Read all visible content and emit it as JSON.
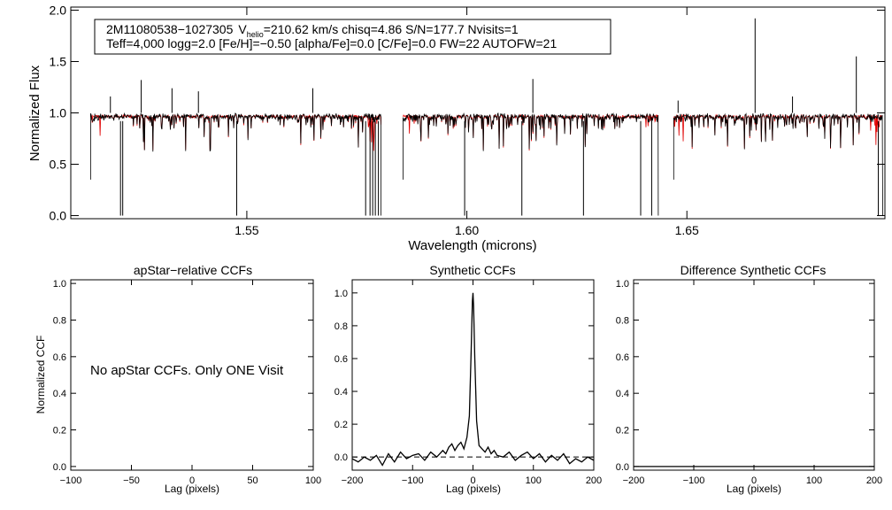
{
  "info_box": {
    "line1_star": "2M11080538−1027305",
    "line1_v": "V",
    "line1_v_sub": "helio",
    "line1_rest": "=210.62 km/s  chisq=4.86  S/N=177.7  Nvisits=1",
    "line2": "Teff=4,000 logg=2.0 [Fe/H]=−0.50 [alpha/Fe]=0.0 [C/Fe]=0.0 FW=22 AUTOFW=21"
  },
  "no_ccf_message": "No apStar CCFs.  Only ONE Visit",
  "colors": {
    "observed": "#000000",
    "model": "#e00000",
    "zero_line": "#000000"
  },
  "chart_data": [
    {
      "id": "spectrum",
      "type": "line",
      "title": "",
      "xlabel": "Wavelength (microns)",
      "ylabel": "Normalized Flux",
      "xlim": [
        1.51,
        1.695
      ],
      "ylim": [
        -0.03,
        2.03
      ],
      "xticks": [
        1.55,
        1.6,
        1.65
      ],
      "xtick_labels": [
        "1.55",
        "1.60",
        "1.65"
      ],
      "yticks": [
        0.0,
        0.5,
        1.0,
        1.5,
        2.0
      ],
      "ytick_labels": [
        "0.0",
        "0.5",
        "1.0",
        "1.5",
        "2.0"
      ],
      "chips": [
        [
          1.5145,
          1.5805
        ],
        [
          1.5855,
          1.6435
        ],
        [
          1.647,
          1.6945
        ]
      ],
      "deep_lines": [
        1.5213,
        1.5218,
        1.5477,
        1.577,
        1.578,
        1.5786,
        1.5792,
        1.5799,
        1.5995,
        1.6125,
        1.6265,
        1.6395,
        1.642,
        1.6935
      ],
      "observed_spikes": [
        {
          "x": 1.519,
          "y": 1.16
        },
        {
          "x": 1.526,
          "y": 1.32
        },
        {
          "x": 1.533,
          "y": 1.24
        },
        {
          "x": 1.539,
          "y": 1.21
        },
        {
          "x": 1.565,
          "y": 1.24
        },
        {
          "x": 1.615,
          "y": 1.33
        },
        {
          "x": 1.648,
          "y": 1.12
        },
        {
          "x": 1.6655,
          "y": 1.92
        },
        {
          "x": 1.6885,
          "y": 1.55
        },
        {
          "x": 1.674,
          "y": 1.16
        }
      ],
      "series": [
        {
          "name": "observed",
          "color": "#000000"
        },
        {
          "name": "model",
          "color": "#e00000"
        }
      ]
    },
    {
      "id": "apstar-ccf",
      "type": "line",
      "title": "apStar−relative CCFs",
      "xlabel": "Lag (pixels)",
      "ylabel": "Normalized CCF",
      "xlim": [
        -100,
        100
      ],
      "ylim": [
        -0.02,
        1.02
      ],
      "xticks": [
        -100,
        -50,
        0,
        50,
        100
      ],
      "xtick_labels": [
        "−100",
        "−50",
        "0",
        "50",
        "100"
      ],
      "yticks": [
        0.0,
        0.2,
        0.4,
        0.6,
        0.8,
        1.0
      ],
      "ytick_labels": [
        "0.0",
        "0.2",
        "0.4",
        "0.6",
        "0.8",
        "1.0"
      ],
      "series": []
    },
    {
      "id": "synthetic-ccf",
      "type": "line",
      "title": "Synthetic CCFs",
      "xlabel": "Lag (pixels)",
      "ylabel": "",
      "xlim": [
        -200,
        200
      ],
      "ylim": [
        -0.08,
        1.08
      ],
      "xticks": [
        -200,
        -100,
        0,
        100,
        200
      ],
      "xtick_labels": [
        "−200",
        "−100",
        "0",
        "100",
        "200"
      ],
      "yticks": [
        0.0,
        0.2,
        0.4,
        0.6,
        0.8,
        1.0
      ],
      "ytick_labels": [
        "0.0",
        "0.2",
        "0.4",
        "0.6",
        "0.8",
        "1.0"
      ],
      "series": [
        {
          "name": "ccf",
          "color": "#000000",
          "x": [
            -200,
            -190,
            -180,
            -170,
            -160,
            -150,
            -140,
            -130,
            -120,
            -110,
            -100,
            -90,
            -80,
            -70,
            -60,
            -50,
            -45,
            -40,
            -35,
            -30,
            -25,
            -20,
            -15,
            -10,
            -6,
            -3,
            -1,
            0,
            1,
            3,
            6,
            10,
            15,
            20,
            25,
            30,
            35,
            40,
            50,
            60,
            70,
            80,
            90,
            100,
            110,
            120,
            130,
            140,
            150,
            160,
            170,
            180,
            190,
            200
          ],
          "y": [
            -0.01,
            -0.03,
            0.0,
            -0.02,
            0.01,
            -0.05,
            0.02,
            -0.03,
            0.03,
            -0.01,
            0.01,
            0.02,
            -0.02,
            0.03,
            0.0,
            0.04,
            0.02,
            0.06,
            0.08,
            0.04,
            0.07,
            0.09,
            0.05,
            0.12,
            0.25,
            0.65,
            0.95,
            1.0,
            0.92,
            0.6,
            0.22,
            0.07,
            0.05,
            0.03,
            0.06,
            0.02,
            0.04,
            0.01,
            0.0,
            0.03,
            -0.02,
            0.01,
            0.03,
            -0.01,
            0.02,
            -0.03,
            0.01,
            -0.02,
            0.02,
            -0.04,
            -0.01,
            -0.03,
            0.0,
            -0.02
          ]
        },
        {
          "name": "zero",
          "color": "#000000",
          "x": [
            -200,
            200
          ],
          "y": [
            0,
            0
          ]
        }
      ]
    },
    {
      "id": "difference-ccf",
      "type": "line",
      "title": "Difference Synthetic CCFs",
      "xlabel": "Lag (pixels)",
      "ylabel": "",
      "xlim": [
        -200,
        200
      ],
      "ylim": [
        -0.02,
        1.02
      ],
      "xticks": [
        -200,
        -100,
        0,
        100,
        200
      ],
      "xtick_labels": [
        "−200",
        "−100",
        "0",
        "100",
        "200"
      ],
      "yticks": [
        0.0,
        0.2,
        0.4,
        0.6,
        0.8,
        1.0
      ],
      "ytick_labels": [
        "0.0",
        "0.2",
        "0.4",
        "0.6",
        "0.8",
        "1.0"
      ],
      "series": []
    }
  ]
}
